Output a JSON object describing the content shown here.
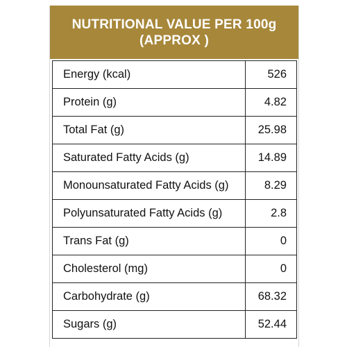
{
  "header": {
    "title": "NUTRITIONAL VALUE PER 100g (APPROX )",
    "background_color": "#a7873a",
    "text_color": "#ffffff"
  },
  "rows": [
    {
      "name": "Energy (kcal)",
      "value": "526"
    },
    {
      "name": "Protein (g)",
      "value": "4.82"
    },
    {
      "name": "Total Fat (g)",
      "value": "25.98"
    },
    {
      "name": "Saturated Fatty Acids (g)",
      "value": "14.89"
    },
    {
      "name": "Monounsaturated Fatty Acids (g)",
      "value": "8.29"
    },
    {
      "name": "Polyunsaturated Fatty Acids (g)",
      "value": "2.8"
    },
    {
      "name": "Trans Fat (g)",
      "value": "0"
    },
    {
      "name": "Cholesterol (mg)",
      "value": "0"
    },
    {
      "name": "Carbohydrate (g)",
      "value": "68.32"
    },
    {
      "name": "Sugars (g)",
      "value": "52.44"
    }
  ]
}
